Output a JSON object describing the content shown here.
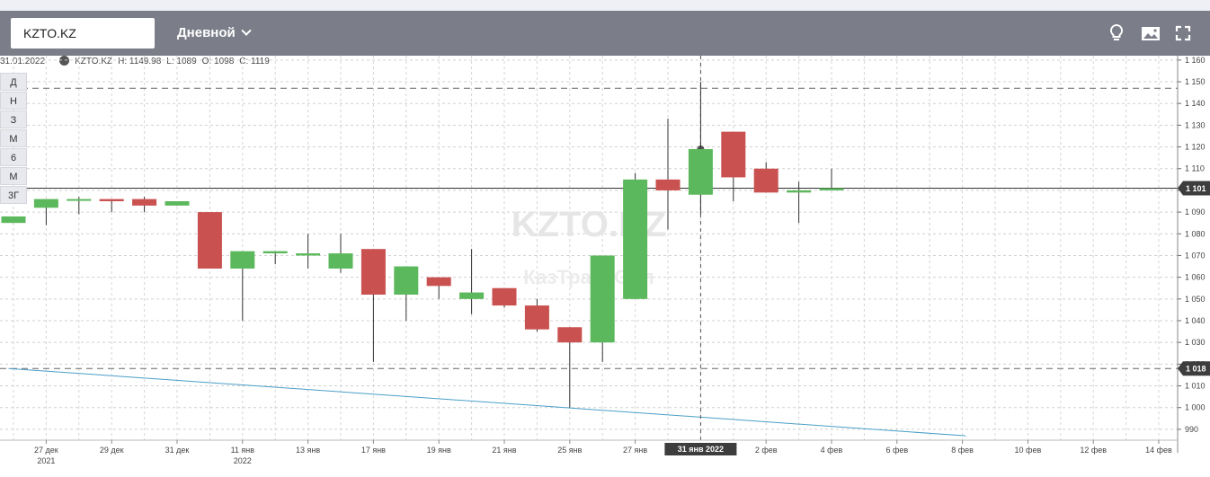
{
  "toolbar": {
    "ticker": "KZTO.KZ",
    "period_label": "Дневной",
    "icons": [
      "lightbulb-icon",
      "image-icon",
      "fullscreen-icon"
    ]
  },
  "info": {
    "date": "31.01.2022",
    "symbol": "KZTO.KZ",
    "high": "H: 1149.98",
    "low": "L: 1089",
    "open": "O: 1098",
    "close": "C: 1119"
  },
  "periods": [
    "Д",
    "Н",
    "З",
    "М",
    "6",
    "М",
    "3Г"
  ],
  "watermark": {
    "line1": "KZTO.KZ",
    "line2": "КазТрансОйл"
  },
  "colors": {
    "up": "#5cb85c",
    "down": "#c9514f",
    "trend": "#4a9fc8",
    "toolbar": "#7b7d89"
  },
  "chart_data": {
    "type": "candlestick",
    "ylim": [
      985,
      1162
    ],
    "y_ticks": [
      990,
      1000,
      1010,
      1020,
      1030,
      1040,
      1050,
      1060,
      1070,
      1080,
      1090,
      1100,
      1110,
      1120,
      1130,
      1140,
      1150,
      1160
    ],
    "x_ticks": [
      {
        "label": "27 дек",
        "sub": "2021",
        "i": 1
      },
      {
        "label": "29 дек",
        "sub": "",
        "i": 3
      },
      {
        "label": "31 дек",
        "sub": "",
        "i": 5
      },
      {
        "label": "11 янв",
        "sub": "2022",
        "i": 7
      },
      {
        "label": "13 янв",
        "sub": "",
        "i": 9
      },
      {
        "label": "17 янв",
        "sub": "",
        "i": 11
      },
      {
        "label": "19 янв",
        "sub": "",
        "i": 13
      },
      {
        "label": "21 янв",
        "sub": "",
        "i": 15
      },
      {
        "label": "25 янв",
        "sub": "",
        "i": 17
      },
      {
        "label": "27 янв",
        "sub": "",
        "i": 19
      },
      {
        "label": "2 фев",
        "sub": "",
        "i": 23
      },
      {
        "label": "4 фев",
        "sub": "",
        "i": 25
      },
      {
        "label": "6 фев",
        "sub": "",
        "i": 27
      },
      {
        "label": "8 фев",
        "sub": "",
        "i": 29
      },
      {
        "label": "10 фев",
        "sub": "",
        "i": 31
      },
      {
        "label": "12 фев",
        "sub": "",
        "i": 33
      },
      {
        "label": "14 фев",
        "sub": "",
        "i": 35
      }
    ],
    "crosshair": {
      "index": 21,
      "label": "31 янв 2022"
    },
    "candles": [
      {
        "o": 1085,
        "h": 1088,
        "l": 1085,
        "c": 1088
      },
      {
        "o": 1092,
        "h": 1096,
        "l": 1084,
        "c": 1096
      },
      {
        "o": 1096,
        "h": 1097,
        "l": 1089,
        "c": 1096
      },
      {
        "o": 1096,
        "h": 1096,
        "l": 1090,
        "c": 1095
      },
      {
        "o": 1096,
        "h": 1097,
        "l": 1090,
        "c": 1093
      },
      {
        "o": 1093,
        "h": 1095,
        "l": 1093,
        "c": 1095
      },
      {
        "o": 1090,
        "h": 1090,
        "l": 1064,
        "c": 1064
      },
      {
        "o": 1064,
        "h": 1072,
        "l": 1040,
        "c": 1072
      },
      {
        "o": 1071,
        "h": 1072,
        "l": 1066,
        "c": 1072
      },
      {
        "o": 1070,
        "h": 1080,
        "l": 1064,
        "c": 1071
      },
      {
        "o": 1064,
        "h": 1080,
        "l": 1062,
        "c": 1071
      },
      {
        "o": 1073,
        "h": 1073,
        "l": 1021,
        "c": 1052
      },
      {
        "o": 1052,
        "h": 1065,
        "l": 1040,
        "c": 1065
      },
      {
        "o": 1060,
        "h": 1060,
        "l": 1050,
        "c": 1056
      },
      {
        "o": 1050,
        "h": 1073,
        "l": 1043,
        "c": 1053
      },
      {
        "o": 1055,
        "h": 1055,
        "l": 1046,
        "c": 1047
      },
      {
        "o": 1047,
        "h": 1050,
        "l": 1035,
        "c": 1036
      },
      {
        "o": 1037,
        "h": 1037,
        "l": 1000,
        "c": 1030
      },
      {
        "o": 1030,
        "h": 1070,
        "l": 1021,
        "c": 1070
      },
      {
        "o": 1050,
        "h": 1108,
        "l": 1050,
        "c": 1105
      },
      {
        "o": 1105,
        "h": 1133,
        "l": 1082,
        "c": 1100
      },
      {
        "o": 1098,
        "h": 1149.98,
        "l": 1089,
        "c": 1119
      },
      {
        "o": 1127,
        "h": 1127,
        "l": 1095,
        "c": 1106
      },
      {
        "o": 1110,
        "h": 1113,
        "l": 1099,
        "c": 1099
      },
      {
        "o": 1099,
        "h": 1104,
        "l": 1085,
        "c": 1100
      },
      {
        "o": 1100,
        "h": 1110,
        "l": 1100,
        "c": 1101
      }
    ],
    "price_lines": [
      {
        "value": 1101,
        "label": "1 101",
        "style": "solid"
      },
      {
        "value": 1018,
        "label": "1 018",
        "style": "dashed"
      },
      {
        "value": 1147,
        "label": "",
        "style": "dashed"
      }
    ],
    "trend_line": {
      "from": {
        "i": -0.15,
        "v": 1018
      },
      "to": {
        "i": 29.1,
        "v": 987
      }
    }
  }
}
